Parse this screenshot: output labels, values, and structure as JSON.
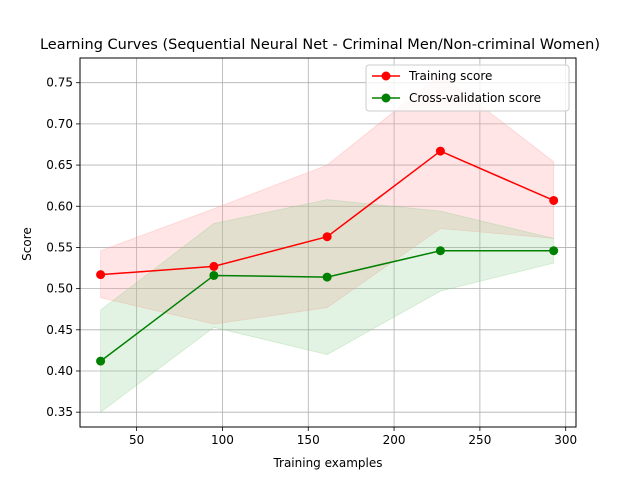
{
  "chart_data": {
    "type": "line",
    "title": "Learning Curves (Sequential Neural Net - Criminal Men/Non-criminal Women)",
    "xlabel": "Training examples",
    "ylabel": "Score",
    "xlim": [
      17,
      306
    ],
    "ylim": [
      0.332,
      0.78
    ],
    "xticks": [
      50,
      100,
      150,
      200,
      250,
      300
    ],
    "xtick_labels": [
      "50",
      "100",
      "150",
      "200",
      "250",
      "300"
    ],
    "yticks": [
      0.35,
      0.4,
      0.45,
      0.5,
      0.55,
      0.6,
      0.65,
      0.7,
      0.75
    ],
    "ytick_labels": [
      "0.35",
      "0.40",
      "0.45",
      "0.50",
      "0.55",
      "0.60",
      "0.65",
      "0.70",
      "0.75"
    ],
    "grid": true,
    "legend_position": "top-right",
    "x": [
      29,
      95,
      161,
      227,
      293
    ],
    "series": [
      {
        "name": "Training score",
        "color": "#ff0000",
        "band_color": "#ff9999",
        "values": [
          0.517,
          0.527,
          0.563,
          0.667,
          0.607
        ],
        "upper": [
          0.546,
          0.597,
          0.65,
          0.76,
          0.654
        ],
        "lower": [
          0.489,
          0.457,
          0.477,
          0.573,
          0.561
        ]
      },
      {
        "name": "Cross-validation score",
        "color": "#008000",
        "band_color": "#8fcf8f",
        "values": [
          0.412,
          0.516,
          0.514,
          0.546,
          0.546
        ],
        "upper": [
          0.474,
          0.579,
          0.608,
          0.594,
          0.561
        ],
        "lower": [
          0.35,
          0.453,
          0.42,
          0.497,
          0.531
        ]
      }
    ]
  }
}
